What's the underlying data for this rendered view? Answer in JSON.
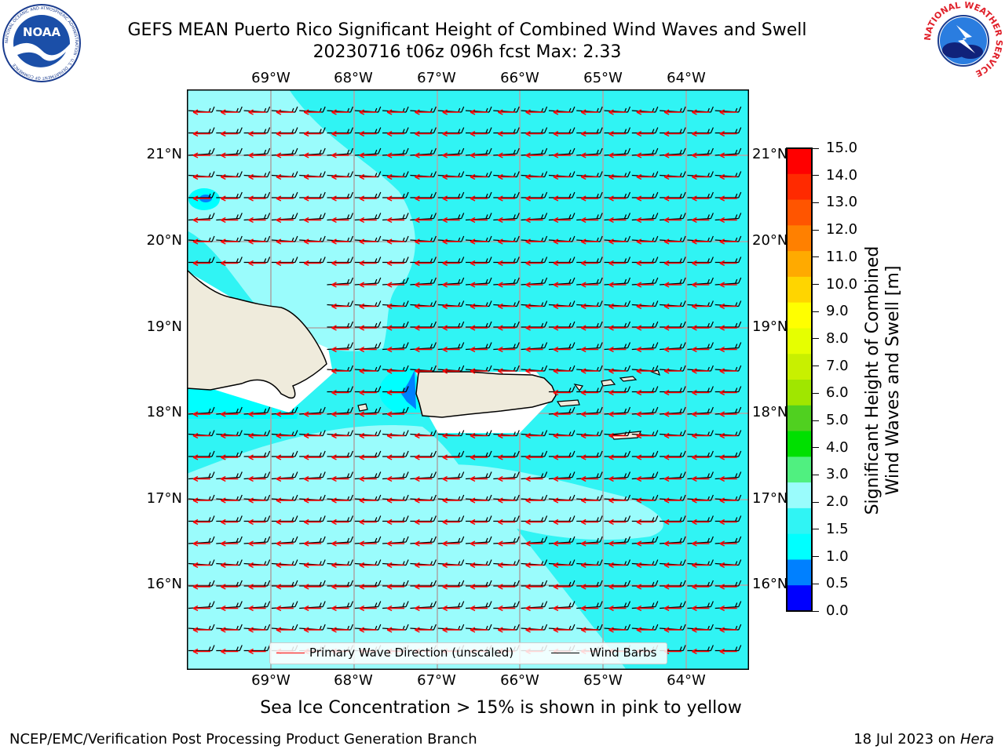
{
  "header": {
    "title_line1": "GEFS MEAN Puerto Rico Significant Height of Combined Wind Waves and Swell",
    "title_line2": "20230716 t06z 096h fcst   Max: 2.33",
    "left_logo_text": "NOAA",
    "left_logo_ring_text": "NATIONAL OCEANIC AND ATMOSPHERIC ADMINISTRATION · U.S. DEPARTMENT OF COMMERCE",
    "right_logo_ring_text": "NATIONAL WEATHER SERVICE"
  },
  "map": {
    "lon_labels": [
      "69°W",
      "68°W",
      "67°W",
      "66°W",
      "65°W",
      "64°W"
    ],
    "lat_labels": [
      "21°N",
      "20°N",
      "19°N",
      "18°N",
      "17°N",
      "16°N"
    ],
    "colors": {
      "ocean_cyan": "#30f4f4",
      "ocean_light": "#9afcfc",
      "ocean_lighter": "#c8fdfd",
      "land": "#efebdc",
      "low_band": "#0080ff",
      "grid": "#aaaaaa",
      "wave_arrow": "#ff0000",
      "wind_barb": "#000000"
    }
  },
  "legend": {
    "wave_label": "Primary Wave Direction (unscaled)",
    "barb_label": "Wind Barbs"
  },
  "colorbar": {
    "title": "Significant Height of Combined Wind Waves and Swell [m]",
    "title_line1": "Significant Height of Combined",
    "title_line2": "Wind Waves and Swell [m]",
    "ticks": [
      "15.0",
      "14.0",
      "13.0",
      "12.0",
      "11.0",
      "10.0",
      "9.0",
      "8.0",
      "7.0",
      "6.0",
      "5.0",
      "4.0",
      "3.0",
      "2.0",
      "1.5",
      "1.0",
      "0.5",
      "0.0"
    ],
    "colors_top_to_bottom": [
      "#ff0000",
      "#ff2a00",
      "#ff5500",
      "#ff8000",
      "#ffaa00",
      "#ffd500",
      "#ffff00",
      "#e6ff00",
      "#c8f000",
      "#a0e600",
      "#50d020",
      "#00e000",
      "#50f080",
      "#9afcfc",
      "#30f4f4",
      "#00ffff",
      "#0080ff",
      "#0000ff"
    ]
  },
  "footer": {
    "ice_note": "Sea Ice Concentration > 15% is shown in pink to yellow",
    "left": "NCEP/EMC/Verification Post Processing Product Generation Branch",
    "right_prefix": "18 Jul 2023 on ",
    "right_host": "Hera"
  }
}
